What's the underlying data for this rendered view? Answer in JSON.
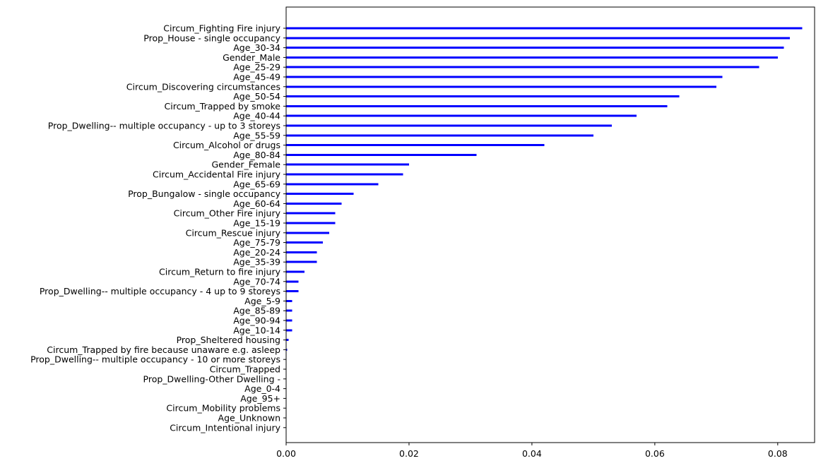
{
  "chart_data": {
    "type": "bar",
    "orientation": "horizontal",
    "title": "",
    "xlabel": "",
    "ylabel": "",
    "xlim": [
      0,
      0.086
    ],
    "x_ticks": [
      0.0,
      0.02,
      0.04,
      0.06,
      0.08
    ],
    "x_tick_labels": [
      "0.00",
      "0.02",
      "0.04",
      "0.06",
      "0.08"
    ],
    "grid": false,
    "bar_color": "#0000ff",
    "categories": [
      "Circum_Fighting Fire injury",
      "Prop_House - single occupancy",
      "Age_30-34",
      "Gender_Male",
      "Age_25-29",
      "Age_45-49",
      "Circum_Discovering circumstances",
      "Age_50-54",
      "Circum_Trapped by smoke",
      "Age_40-44",
      "Prop_Dwelling-- multiple occupancy - up to 3 storeys",
      "Age_55-59",
      "Circum_Alcohol or drugs",
      "Age_80-84",
      "Gender_Female",
      "Circum_Accidental Fire injury",
      "Age_65-69",
      "Prop_Bungalow - single occupancy",
      "Age_60-64",
      "Circum_Other Fire injury",
      "Age_15-19",
      "Circum_Rescue injury",
      "Age_75-79",
      "Age_20-24",
      "Age_35-39",
      "Circum_Return to fire injury",
      "Age_70-74",
      "Prop_Dwelling-- multiple occupancy - 4 up to 9 storeys",
      "Age_5-9",
      "Age_85-89",
      "Age_90-94",
      "Age_10-14",
      "Prop_Sheltered housing",
      "Circum_Trapped by fire because unaware e.g. asleep",
      "Prop_Dwelling-- multiple occupancy - 10 or more storeys",
      "Circum_Trapped",
      "Prop_Dwelling-Other Dwelling -",
      "Age_0-4",
      "Age_95+",
      "Circum_Mobility problems",
      "Age_Unknown",
      "Circum_Intentional injury"
    ],
    "values": [
      0.084,
      0.082,
      0.081,
      0.08,
      0.077,
      0.071,
      0.07,
      0.064,
      0.062,
      0.057,
      0.053,
      0.05,
      0.042,
      0.031,
      0.02,
      0.019,
      0.015,
      0.011,
      0.009,
      0.008,
      0.008,
      0.007,
      0.006,
      0.005,
      0.005,
      0.003,
      0.002,
      0.002,
      0.001,
      0.001,
      0.001,
      0.001,
      0.0004,
      0.0002,
      0.0,
      0.0,
      0.0,
      0.0,
      0.0,
      0.0,
      0.0,
      0.0
    ]
  }
}
